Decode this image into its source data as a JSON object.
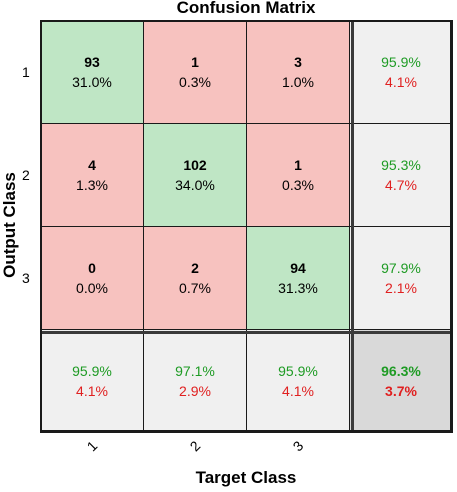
{
  "chart_data": {
    "type": "heatmap",
    "title": "Confusion Matrix",
    "xlabel": "Target Class",
    "ylabel": "Output Class",
    "x_tick_labels": [
      "1",
      "2",
      "3"
    ],
    "y_tick_labels": [
      "1",
      "2",
      "3"
    ],
    "cells": [
      [
        {
          "count": "93",
          "percent": "31.0%"
        },
        {
          "count": "1",
          "percent": "0.3%"
        },
        {
          "count": "3",
          "percent": "1.0%"
        }
      ],
      [
        {
          "count": "4",
          "percent": "1.3%"
        },
        {
          "count": "102",
          "percent": "34.0%"
        },
        {
          "count": "1",
          "percent": "0.3%"
        }
      ],
      [
        {
          "count": "0",
          "percent": "0.0%"
        },
        {
          "count": "2",
          "percent": "0.7%"
        },
        {
          "count": "94",
          "percent": "31.3%"
        }
      ]
    ],
    "row_summary": [
      {
        "correct": "95.9%",
        "incorrect": "4.1%"
      },
      {
        "correct": "95.3%",
        "incorrect": "4.7%"
      },
      {
        "correct": "97.9%",
        "incorrect": "2.1%"
      }
    ],
    "col_summary": [
      {
        "correct": "95.9%",
        "incorrect": "4.1%"
      },
      {
        "correct": "97.1%",
        "incorrect": "2.9%"
      },
      {
        "correct": "95.9%",
        "incorrect": "4.1%"
      }
    ],
    "total": {
      "correct": "96.3%",
      "incorrect": "3.7%"
    },
    "colors": {
      "diagonal": "#bfe6c5",
      "off_diagonal": "#f7c2bf",
      "summary": "#f0f0f0",
      "total": "#d9d9d9",
      "correct_text": "#1e9b24",
      "incorrect_text": "#e02020"
    }
  }
}
